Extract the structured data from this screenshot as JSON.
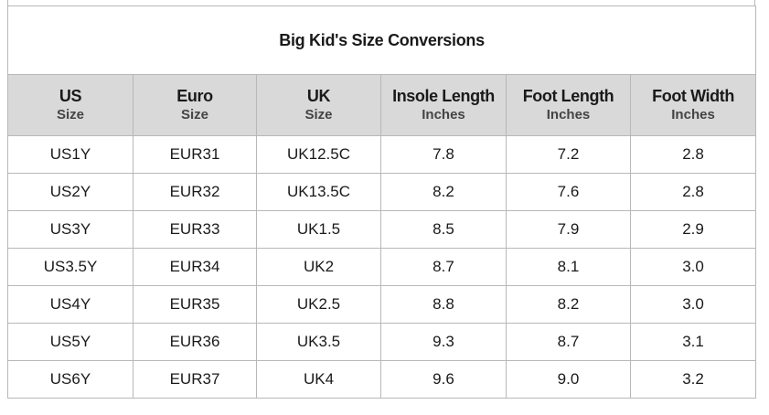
{
  "title": "Big Kid's Size Conversions",
  "headers": [
    {
      "main": "US",
      "sub": "Size"
    },
    {
      "main": "Euro",
      "sub": "Size"
    },
    {
      "main": "UK",
      "sub": "Size"
    },
    {
      "main": "Insole Length",
      "sub": "Inches"
    },
    {
      "main": "Foot Length",
      "sub": "Inches"
    },
    {
      "main": "Foot Width",
      "sub": "Inches"
    }
  ],
  "rows": [
    [
      "US1Y",
      "EUR31",
      "UK12.5C",
      "7.8",
      "7.2",
      "2.8"
    ],
    [
      "US2Y",
      "EUR32",
      "UK13.5C",
      "8.2",
      "7.6",
      "2.8"
    ],
    [
      "US3Y",
      "EUR33",
      "UK1.5",
      "8.5",
      "7.9",
      "2.9"
    ],
    [
      "US3.5Y",
      "EUR34",
      "UK2",
      "8.7",
      "8.1",
      "3.0"
    ],
    [
      "US4Y",
      "EUR35",
      "UK2.5",
      "8.8",
      "8.2",
      "3.0"
    ],
    [
      "US5Y",
      "EUR36",
      "UK3.5",
      "9.3",
      "8.7",
      "3.1"
    ],
    [
      "US6Y",
      "EUR37",
      "UK4",
      "9.6",
      "9.0",
      "3.2"
    ]
  ],
  "colors": {
    "header_bg": "#d9d9d9",
    "border": "#b8b8b8"
  }
}
